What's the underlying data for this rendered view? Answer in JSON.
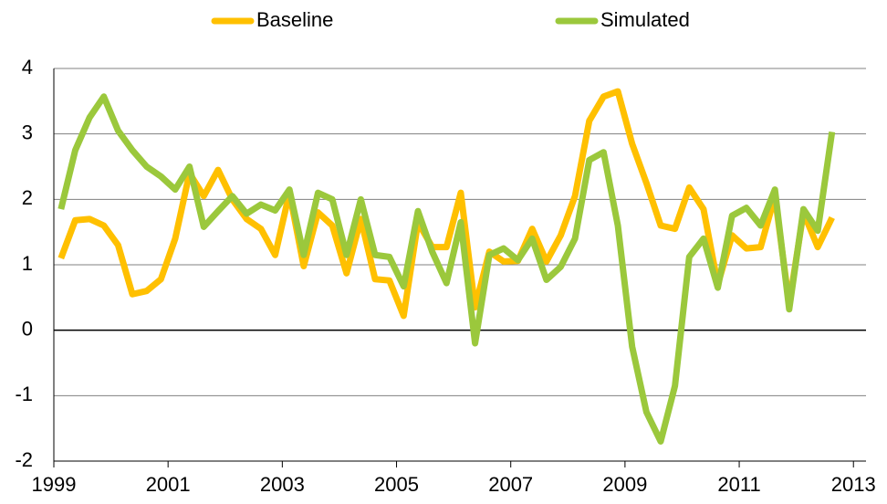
{
  "chart_data": {
    "type": "line",
    "x": [
      1999.125,
      1999.375,
      1999.625,
      1999.875,
      2000.125,
      2000.375,
      2000.625,
      2000.875,
      2001.125,
      2001.375,
      2001.625,
      2001.875,
      2002.125,
      2002.375,
      2002.625,
      2002.875,
      2003.125,
      2003.375,
      2003.625,
      2003.875,
      2004.125,
      2004.375,
      2004.625,
      2004.875,
      2005.125,
      2005.375,
      2005.625,
      2005.875,
      2006.125,
      2006.375,
      2006.625,
      2006.875,
      2007.125,
      2007.375,
      2007.625,
      2007.875,
      2008.125,
      2008.375,
      2008.625,
      2008.875,
      2009.125,
      2009.375,
      2009.625,
      2009.875,
      2010.125,
      2010.375,
      2010.625,
      2010.875,
      2011.125,
      2011.375,
      2011.625,
      2011.875,
      2012.125,
      2012.375,
      2012.625
    ],
    "series": [
      {
        "name": "Baseline",
        "color": "#ffc000",
        "values": [
          1.1,
          1.68,
          1.7,
          1.6,
          1.3,
          0.55,
          0.6,
          0.78,
          1.4,
          2.4,
          2.05,
          2.45,
          2.0,
          1.7,
          1.55,
          1.15,
          2.1,
          0.98,
          1.8,
          1.6,
          0.87,
          1.7,
          0.78,
          0.76,
          0.22,
          1.65,
          1.27,
          1.27,
          2.1,
          0.35,
          1.2,
          1.05,
          1.06,
          1.55,
          1.05,
          1.45,
          2.05,
          3.2,
          3.57,
          3.65,
          2.85,
          2.25,
          1.6,
          1.55,
          2.18,
          1.85,
          0.7,
          1.45,
          1.25,
          1.27,
          2.05,
          0.4,
          1.8,
          1.27,
          1.72
        ]
      },
      {
        "name": "Simulated",
        "color": "#9bc83c",
        "values": [
          1.85,
          2.75,
          3.25,
          3.57,
          3.05,
          2.75,
          2.5,
          2.35,
          2.15,
          2.5,
          1.58,
          1.82,
          2.05,
          1.78,
          1.92,
          1.83,
          2.15,
          1.15,
          2.1,
          2.0,
          1.15,
          2.0,
          1.15,
          1.12,
          0.67,
          1.82,
          1.2,
          0.72,
          1.65,
          -0.2,
          1.15,
          1.25,
          1.07,
          1.4,
          0.77,
          0.97,
          1.4,
          2.6,
          2.72,
          1.6,
          -0.25,
          -1.25,
          -1.7,
          -0.85,
          1.12,
          1.4,
          0.65,
          1.75,
          1.87,
          1.6,
          2.15,
          0.32,
          1.85,
          1.52,
          3.03
        ]
      }
    ],
    "xlim": [
      1999,
      2013.22
    ],
    "xticks": [
      1999,
      2001,
      2003,
      2005,
      2007,
      2009,
      2011,
      2013
    ],
    "ylim": [
      -2,
      4
    ],
    "yticks": [
      -2,
      -1,
      0,
      1,
      2,
      3,
      4
    ],
    "grid": true,
    "legend": "top"
  }
}
